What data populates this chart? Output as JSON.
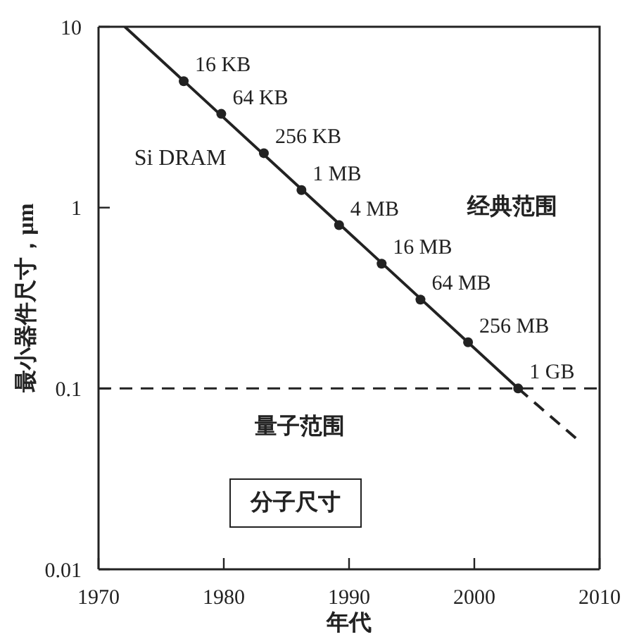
{
  "chart_data": {
    "type": "line",
    "xlabel": "年代",
    "ylabel": "最小器件尺寸，μm",
    "log": "y",
    "xlim": [
      1970,
      2010
    ],
    "xticks": [
      1970,
      1980,
      1990,
      2000,
      2010
    ],
    "ylim": [
      0.01,
      10
    ],
    "yticks": [
      0.01,
      0.1,
      1,
      10
    ],
    "grid": false,
    "series": [
      {
        "marker": "none",
        "line_style": "solid",
        "color": "#222222",
        "x": [
          1972.1,
          2003.5
        ],
        "values": [
          10,
          0.1
        ]
      },
      {
        "type": "scatter",
        "marker": "circle",
        "color": "#222222",
        "x": [
          1976.8,
          1979.8,
          1983.2,
          1986.2,
          1989.2,
          1992.6,
          1995.7,
          1999.5,
          2003.5
        ],
        "values": [
          5,
          3.3,
          2,
          1.25,
          0.8,
          0.49,
          0.31,
          0.18,
          0.1
        ]
      },
      {
        "marker": "none",
        "line_style": "dashed",
        "color": "#222222",
        "x": [
          2003.5,
          2008.4
        ],
        "values": [
          0.1,
          0.051
        ]
      }
    ],
    "ref_lines": [
      {
        "axis": "y",
        "value": 0.1,
        "line_style": "dashed",
        "color": "#222222"
      }
    ],
    "annotations": [
      {
        "text": "16 KB",
        "x": 1976.8,
        "y": 5
      },
      {
        "text": "64 KB",
        "x": 1979.8,
        "y": 3.3
      },
      {
        "text": "256 KB",
        "x": 1983.2,
        "y": 2
      },
      {
        "text": "1 MB",
        "x": 1986.2,
        "y": 1.25
      },
      {
        "text": "4 MB",
        "x": 1989.2,
        "y": 0.8
      },
      {
        "text": "16 MB",
        "x": 1992.6,
        "y": 0.49
      },
      {
        "text": "64 MB",
        "x": 1995.7,
        "y": 0.31
      },
      {
        "text": "256 MB",
        "x": 1999.5,
        "y": 0.18
      },
      {
        "text": "1 GB",
        "x": 2003.5,
        "y": 0.1
      },
      "Si DRAM",
      "经典范围",
      "量子范围",
      "分子尺寸"
    ]
  }
}
